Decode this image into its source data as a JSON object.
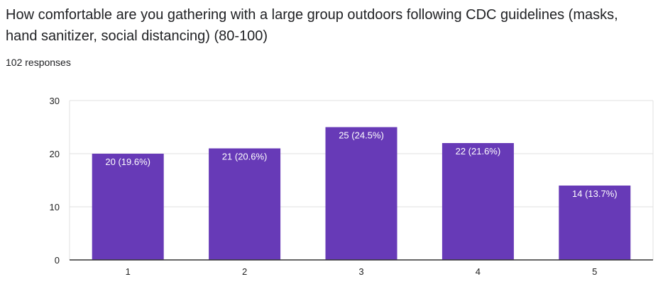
{
  "question": {
    "title": "How comfortable are you gathering with a large group outdoors following CDC guidelines (masks, hand sanitizer, social distancing) (80-100)",
    "responses": "102 responses"
  },
  "chart_data": {
    "type": "bar",
    "categories": [
      "1",
      "2",
      "3",
      "4",
      "5"
    ],
    "values": [
      20,
      21,
      25,
      22,
      14
    ],
    "labels": [
      "20 (19.6%)",
      "21 (20.6%)",
      "25 (24.5%)",
      "22 (21.6%)",
      "14 (13.7%)"
    ],
    "ylim": [
      0,
      30
    ],
    "yticks": [
      0,
      10,
      20,
      30
    ],
    "grid": true,
    "bar_color": "#673ab7",
    "grid_color": "#e0e0e0",
    "axis_color": "#333333"
  }
}
